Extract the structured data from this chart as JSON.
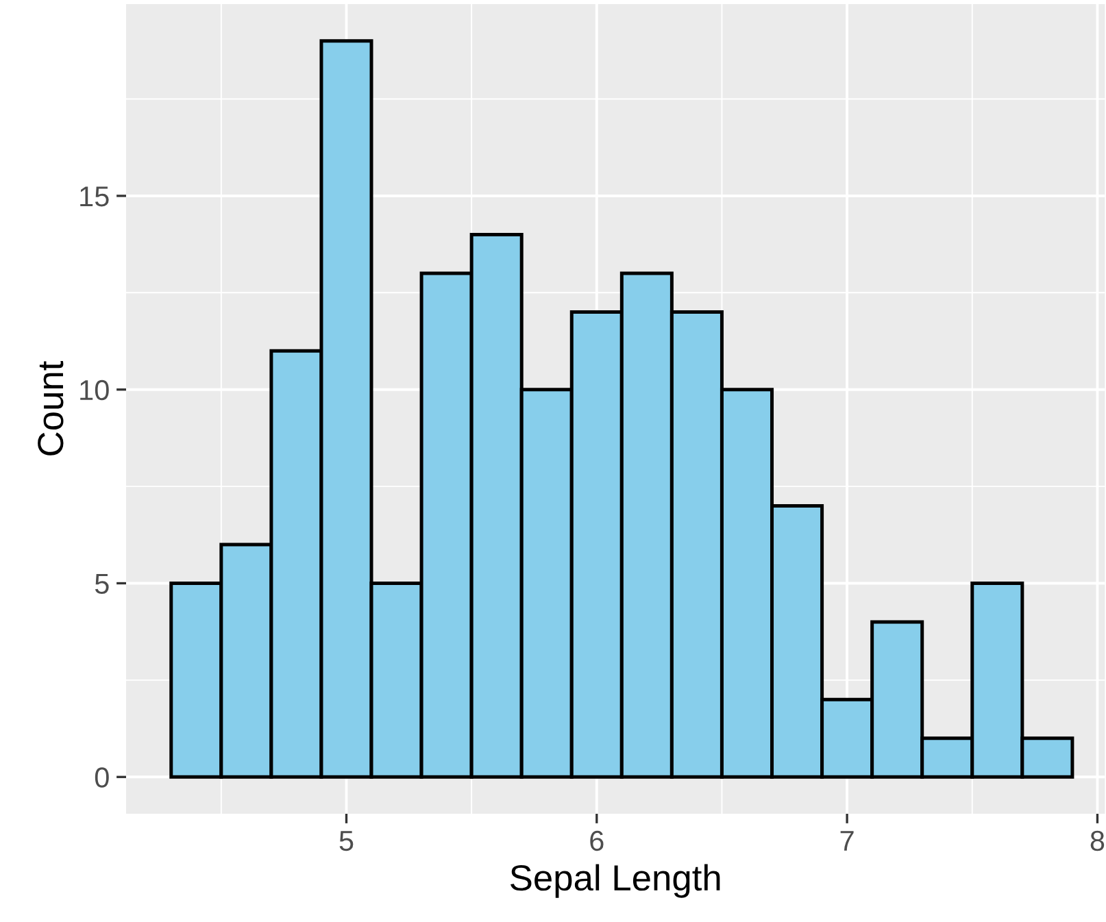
{
  "chart_data": {
    "type": "histogram",
    "xlabel": "Sepal Length",
    "ylabel": "Count",
    "bins": [
      4.3,
      4.5,
      4.7,
      4.9,
      5.1,
      5.3,
      5.5,
      5.7,
      5.9,
      6.1,
      6.3,
      6.5,
      6.7,
      6.9,
      7.1,
      7.3,
      7.5,
      7.7,
      7.9
    ],
    "values": [
      5,
      6,
      11,
      19,
      5,
      13,
      14,
      10,
      12,
      13,
      12,
      10,
      7,
      2,
      4,
      1,
      5,
      1
    ],
    "color": "#87ceeb",
    "xlim": [
      4.12,
      8.03
    ],
    "xticks": [
      5,
      6,
      7,
      8
    ],
    "ylim": [
      -0.95,
      19.95
    ],
    "yticks": [
      0,
      5,
      10,
      15
    ],
    "grid": true
  }
}
